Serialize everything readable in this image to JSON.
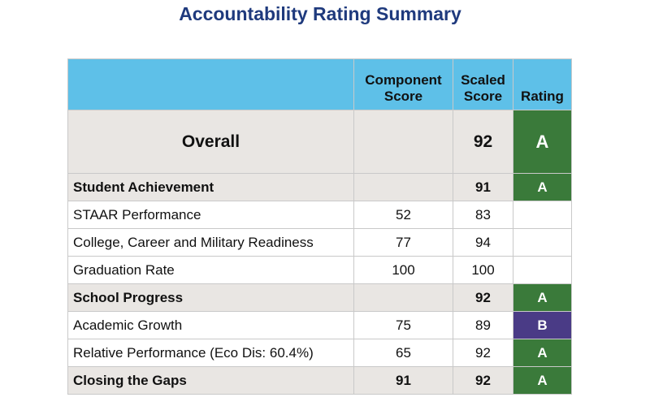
{
  "page": {
    "title": "Accountability Rating Summary"
  },
  "table": {
    "headers": {
      "category": "",
      "component": "Component\nScore",
      "scaled": "Scaled\nScore",
      "rating": "Rating"
    },
    "overall": {
      "label": "Overall",
      "component": "",
      "scaled": "92",
      "rating": "A"
    },
    "rows": [
      {
        "label": "Student Achievement",
        "component": "",
        "scaled": "91",
        "rating": "A"
      },
      {
        "label": "STAAR Performance",
        "component": "52",
        "scaled": "83",
        "rating": ""
      },
      {
        "label": "College, Career and Military Readiness",
        "component": "77",
        "scaled": "94",
        "rating": ""
      },
      {
        "label": "Graduation Rate",
        "component": "100",
        "scaled": "100",
        "rating": ""
      },
      {
        "label": "School Progress",
        "component": "",
        "scaled": "92",
        "rating": "A"
      },
      {
        "label": "Academic Growth",
        "component": "75",
        "scaled": "89",
        "rating": "B"
      },
      {
        "label": "Relative Performance (Eco Dis: 60.4%)",
        "component": "65",
        "scaled": "92",
        "rating": "A"
      },
      {
        "label": "Closing the Gaps",
        "component": "91",
        "scaled": "92",
        "rating": "A"
      }
    ]
  },
  "colors": {
    "title": "#1f3a7d",
    "header_bg": "#5ec0e8",
    "section_bg": "#e9e6e3",
    "grade_a": "#3a7a3a",
    "grade_b": "#4a3b86"
  }
}
